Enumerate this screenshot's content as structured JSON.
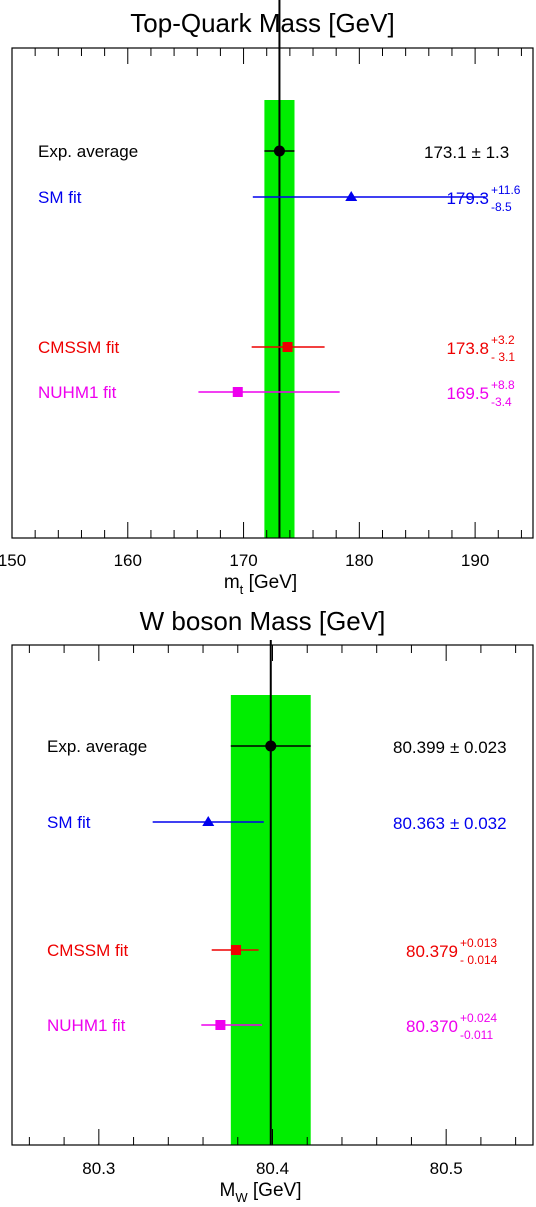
{
  "chart_data": [
    {
      "type": "scatter",
      "title": "Top-Quark Mass [GeV]",
      "xlabel_main": "m",
      "xlabel_sub": "t",
      "xlabel_unit": " [GeV]",
      "xlim": [
        150,
        195
      ],
      "ticks": [
        150,
        160,
        170,
        180,
        190
      ],
      "tick_labels": [
        "150",
        "160",
        "170",
        "180",
        "190"
      ],
      "minor_step": 2,
      "band": {
        "center": 173.1,
        "error": 1.3,
        "color": "#00ee00"
      },
      "reference_line": 173.1,
      "grid": false,
      "entries": [
        {
          "label": "Exp. average",
          "value": 173.1,
          "err_up": 1.3,
          "err_down": 1.3,
          "marker": "circle",
          "color": "#000000",
          "text_value": "173.1",
          "text_sym": "± 1.3",
          "text_up": "",
          "text_down": ""
        },
        {
          "label": "SM fit",
          "value": 179.3,
          "err_up": 11.6,
          "err_down": 8.5,
          "marker": "triangle",
          "color": "#0000ee",
          "text_value": "179.3",
          "text_sym": "",
          "text_up": "+11.6",
          "text_down": "-8.5"
        },
        {
          "label": "CMSSM fit",
          "value": 173.8,
          "err_up": 3.2,
          "err_down": 3.1,
          "marker": "square",
          "color": "#ee0000",
          "text_value": "173.8",
          "text_sym": "",
          "text_up": "+3.2",
          "text_down": "- 3.1"
        },
        {
          "label": "NUHM1 fit",
          "value": 169.5,
          "err_up": 8.8,
          "err_down": 3.4,
          "marker": "square",
          "color": "#ee00ee",
          "text_value": "169.5",
          "text_sym": "",
          "text_up": "+8.8",
          "text_down": "-3.4"
        }
      ]
    },
    {
      "type": "scatter",
      "title": "W boson Mass [GeV]",
      "xlabel_main": "M",
      "xlabel_sub": "W",
      "xlabel_unit": " [GeV]",
      "xlim": [
        80.25,
        80.55
      ],
      "ticks": [
        80.3,
        80.4,
        80.5
      ],
      "tick_labels": [
        "80.3",
        "80.4",
        "80.5"
      ],
      "minor_step": 0.02,
      "band": {
        "center": 80.399,
        "error": 0.023,
        "color": "#00ee00"
      },
      "reference_line": 80.399,
      "grid": false,
      "entries": [
        {
          "label": "Exp. average",
          "value": 80.399,
          "err_up": 0.023,
          "err_down": 0.023,
          "marker": "circle",
          "color": "#000000",
          "text_value": "80.399",
          "text_sym": "± 0.023",
          "text_up": "",
          "text_down": ""
        },
        {
          "label": "SM fit",
          "value": 80.363,
          "err_up": 0.032,
          "err_down": 0.032,
          "marker": "triangle",
          "color": "#0000ee",
          "text_value": "80.363",
          "text_sym": "± 0.032",
          "text_up": "",
          "text_down": ""
        },
        {
          "label": "CMSSM fit",
          "value": 80.379,
          "err_up": 0.013,
          "err_down": 0.014,
          "marker": "square",
          "color": "#ee0000",
          "text_value": "80.379",
          "text_sym": "",
          "text_up": "+0.013",
          "text_down": "- 0.014"
        },
        {
          "label": "NUHM1 fit",
          "value": 80.37,
          "err_up": 0.024,
          "err_down": 0.011,
          "marker": "square",
          "color": "#ee00ee",
          "text_value": "80.370",
          "text_sym": "",
          "text_up": "+0.024",
          "text_down": "-0.011"
        }
      ]
    }
  ]
}
